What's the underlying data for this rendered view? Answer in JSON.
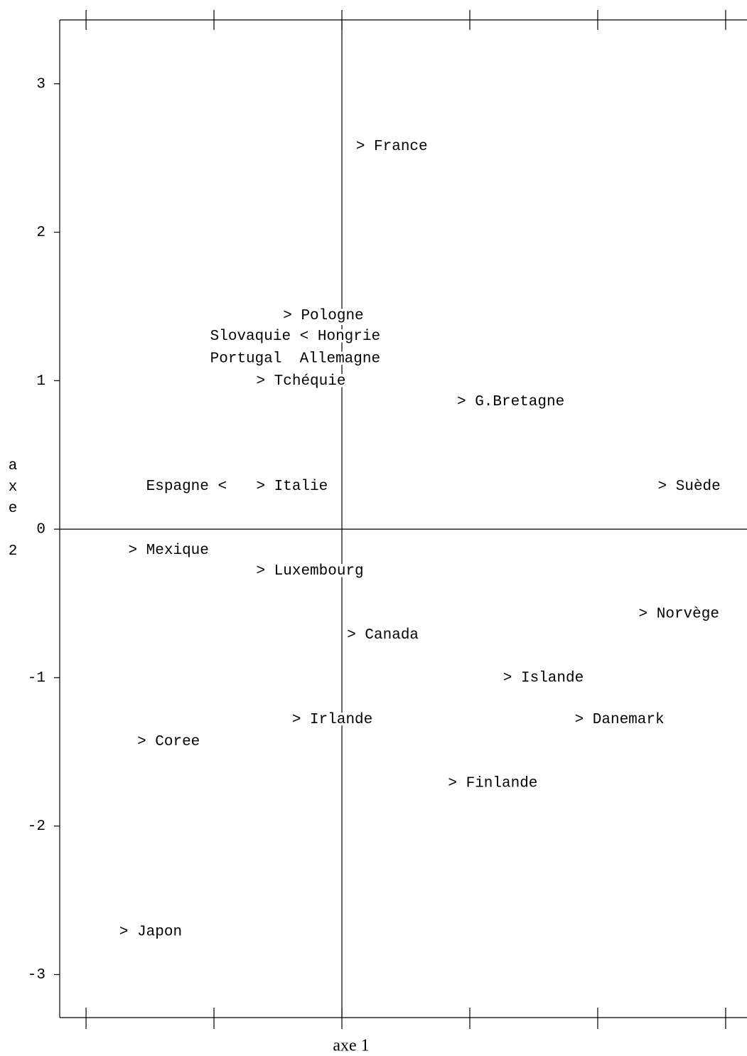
{
  "chart_data": {
    "type": "scatter",
    "x_label": "axe 1",
    "y_label": "axe 2",
    "xlim": [
      -2.206,
      3.167
    ],
    "ylim": [
      -3.29,
      3.43
    ],
    "xticks": [
      -2,
      -1,
      0,
      1,
      2,
      3
    ],
    "yticks": [
      -3,
      -2,
      -1,
      0,
      1,
      2,
      3
    ],
    "labels": [
      "> France",
      "> Pologne",
      "Slovaquie < Hongrie",
      "Portugal  Allemagne",
      "> Tchéquie",
      "> G.Bretagne",
      "Espagne <",
      "> Italie",
      "> Suède",
      "> Mexique",
      "> Luxembourg",
      "> Norvège",
      "> Canada",
      "> Islande",
      "> Irlande",
      "> Danemark",
      "> Coree",
      "> Finlande",
      "> Japon"
    ],
    "x": [
      0.11,
      -0.46,
      -1.03,
      -1.03,
      -0.67,
      0.9,
      -1.53,
      -0.67,
      2.47,
      -1.67,
      -0.67,
      2.32,
      0.04,
      1.26,
      -0.39,
      1.82,
      -1.6,
      0.83,
      -1.74
    ],
    "y": [
      2.58,
      1.44,
      1.3,
      1.15,
      1.0,
      0.86,
      0.29,
      0.29,
      0.29,
      -0.14,
      -0.28,
      -0.57,
      -0.71,
      -1.0,
      -1.28,
      -1.28,
      -1.43,
      -1.71,
      -2.71
    ]
  }
}
